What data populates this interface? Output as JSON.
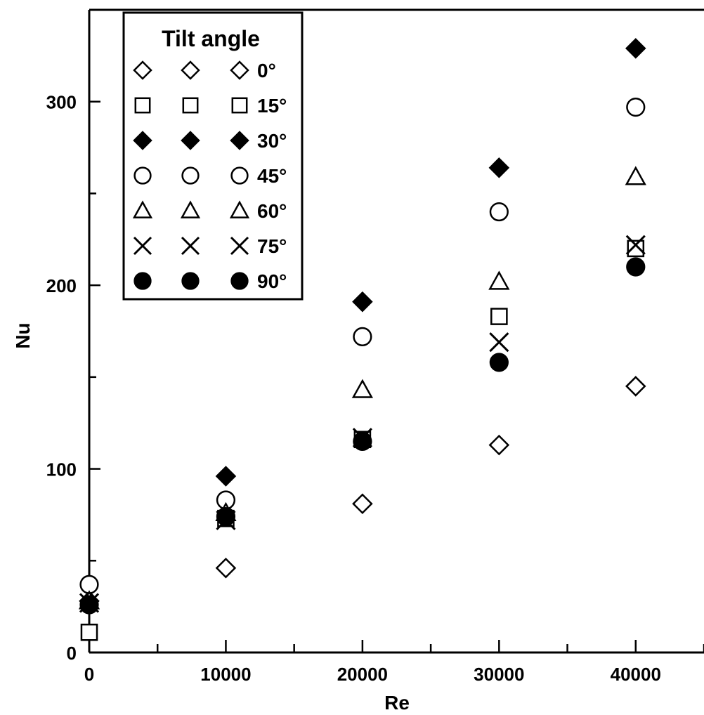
{
  "chart_data": {
    "type": "scatter",
    "title": "",
    "xlabel": "Re",
    "ylabel": "Nu",
    "xlim": [
      0,
      45000
    ],
    "ylim": [
      0,
      350
    ],
    "x_ticks": [
      0,
      10000,
      20000,
      30000,
      40000
    ],
    "y_ticks": [
      0,
      100,
      200,
      300
    ],
    "x_tick_labels": [
      "0",
      "10000",
      "20000",
      "30000",
      "40000"
    ],
    "y_tick_labels": [
      "0",
      "100",
      "200",
      "300"
    ],
    "grid": false,
    "legend": {
      "title": "Tilt angle",
      "placement": "top-left"
    },
    "series": [
      {
        "name": "0°",
        "marker": "diamond-open",
        "x": [
          10000,
          20000,
          30000,
          40000
        ],
        "y": [
          46,
          81,
          113,
          145
        ]
      },
      {
        "name": "15°",
        "marker": "square-open",
        "x": [
          0,
          10000,
          20000,
          30000,
          40000
        ],
        "y": [
          11,
          73,
          116,
          183,
          220
        ]
      },
      {
        "name": "30°",
        "marker": "diamond-filled",
        "x": [
          0,
          10000,
          20000,
          30000,
          40000
        ],
        "y": [
          28,
          96,
          191,
          264,
          329
        ]
      },
      {
        "name": "45°",
        "marker": "circle-open",
        "x": [
          0,
          10000,
          20000,
          30000,
          40000
        ],
        "y": [
          37,
          83,
          172,
          240,
          297
        ]
      },
      {
        "name": "60°",
        "marker": "triangle-open",
        "x": [
          0,
          10000,
          20000,
          30000,
          40000
        ],
        "y": [
          28,
          76,
          143,
          202,
          259
        ]
      },
      {
        "name": "75°",
        "marker": "cross",
        "x": [
          0,
          10000,
          20000,
          30000,
          40000
        ],
        "y": [
          27,
          72,
          117,
          169,
          222
        ]
      },
      {
        "name": "90°",
        "marker": "circle-filled",
        "x": [
          0,
          10000,
          20000,
          30000,
          40000
        ],
        "y": [
          26,
          74,
          115,
          158,
          210
        ]
      }
    ]
  }
}
